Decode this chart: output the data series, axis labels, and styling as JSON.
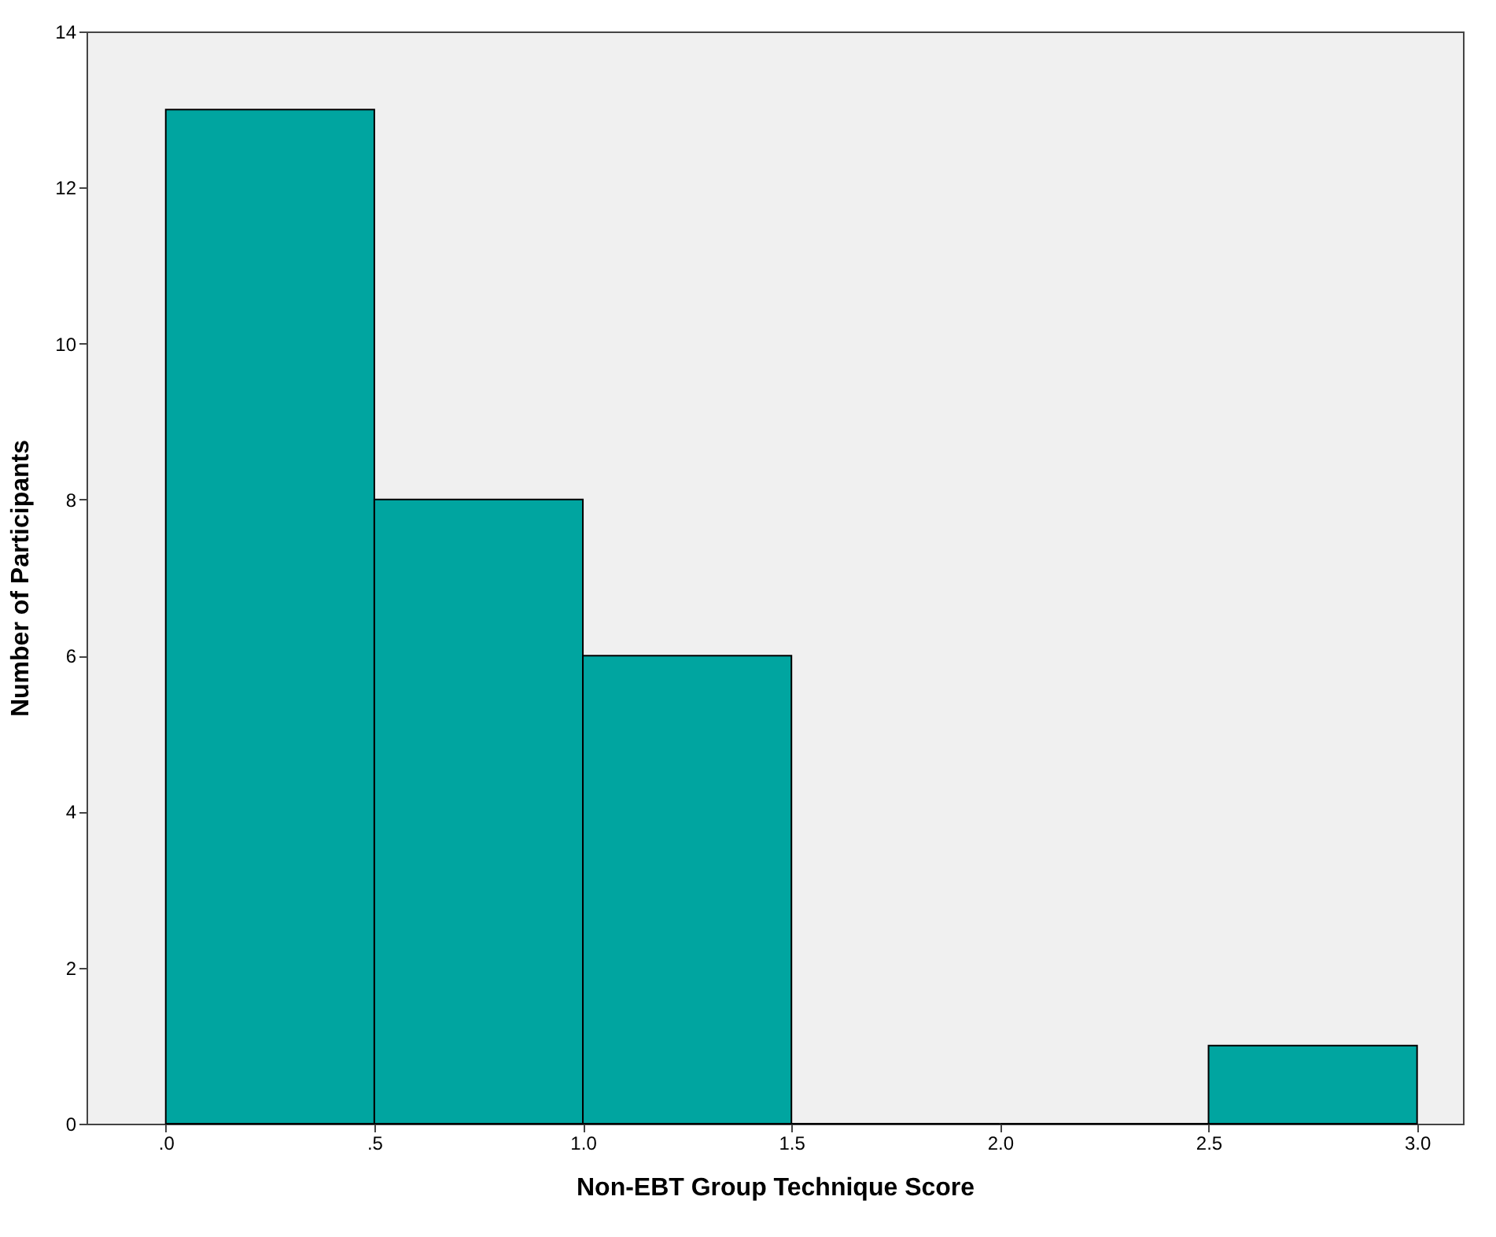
{
  "chart_data": {
    "type": "histogram",
    "xlabel": "Non-EBT Group Technique Score",
    "ylabel": "Number of Participants",
    "bins": [
      0,
      0.5,
      1,
      1.5,
      2,
      2.5,
      3
    ],
    "values": [
      13,
      8,
      6,
      0,
      0,
      1
    ],
    "color": "#00a5a0",
    "xlim": [
      -0.19,
      3.11
    ],
    "xticks": [
      {
        "value": 0,
        "label": ".0"
      },
      {
        "value": 0.5,
        "label": ".5"
      },
      {
        "value": 1,
        "label": "1.0"
      },
      {
        "value": 1.5,
        "label": "1.5"
      },
      {
        "value": 2,
        "label": "2.0"
      },
      {
        "value": 2.5,
        "label": "2.5"
      },
      {
        "value": 3,
        "label": "3.0"
      }
    ],
    "ylim": [
      0,
      14
    ],
    "yticks": [
      0,
      2,
      4,
      6,
      8,
      10,
      12,
      14
    ],
    "grid": false
  }
}
